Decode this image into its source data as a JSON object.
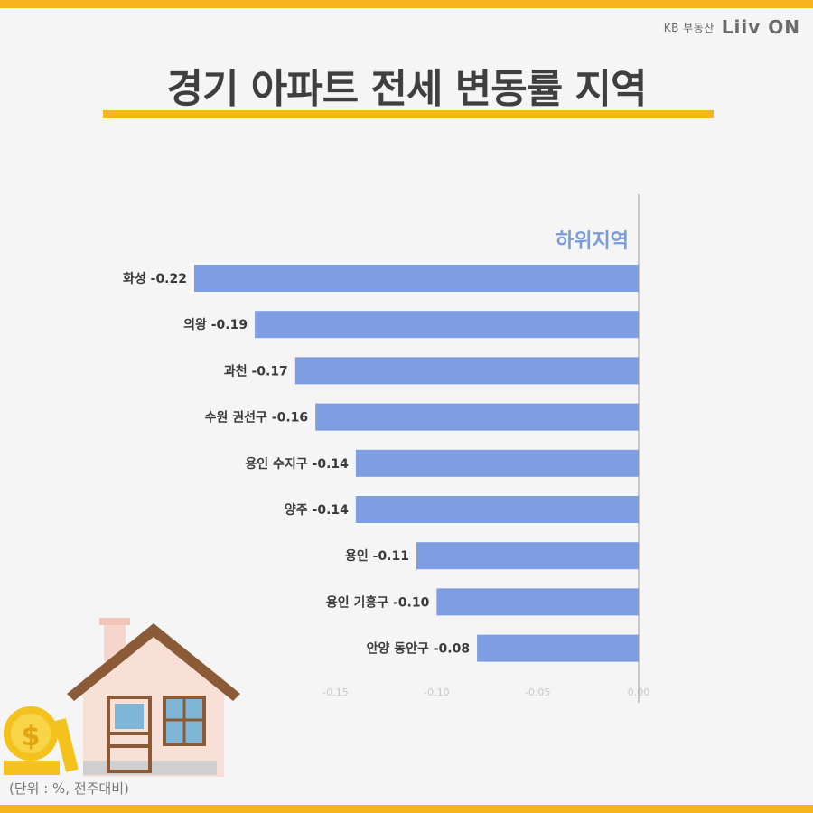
{
  "brand": {
    "company": "KB 부동산",
    "logo": "Liiv ON"
  },
  "title": "경기 아파트 전세 변동률 지역",
  "unit_note": "(단위 : %, 전주대비)",
  "colors": {
    "accent": "#f7b61c",
    "bar": "#7f9de3",
    "panel_title": "#7b9cda"
  },
  "chart_data": {
    "type": "bar",
    "orientation": "horizontal",
    "panel_title": "하위지역",
    "categories": [
      "화성",
      "의왕",
      "과천",
      "수원 권선구",
      "용인 수지구",
      "양주",
      "용인",
      "용인 기흥구",
      "안양 동안구"
    ],
    "values": [
      -0.22,
      -0.19,
      -0.17,
      -0.16,
      -0.14,
      -0.14,
      -0.11,
      -0.1,
      -0.08
    ],
    "value_labels": [
      "-0.22",
      "-0.19",
      "-0.17",
      "-0.16",
      "-0.14",
      "-0.14",
      "-0.11",
      "-0.10",
      "-0.08"
    ],
    "xlim": [
      -0.22,
      0.0
    ],
    "xticks": [
      "-0.15",
      "-0.10",
      "-0.05",
      "0.00"
    ],
    "xtick_values": [
      -0.15,
      -0.1,
      -0.05,
      0.0
    ]
  }
}
